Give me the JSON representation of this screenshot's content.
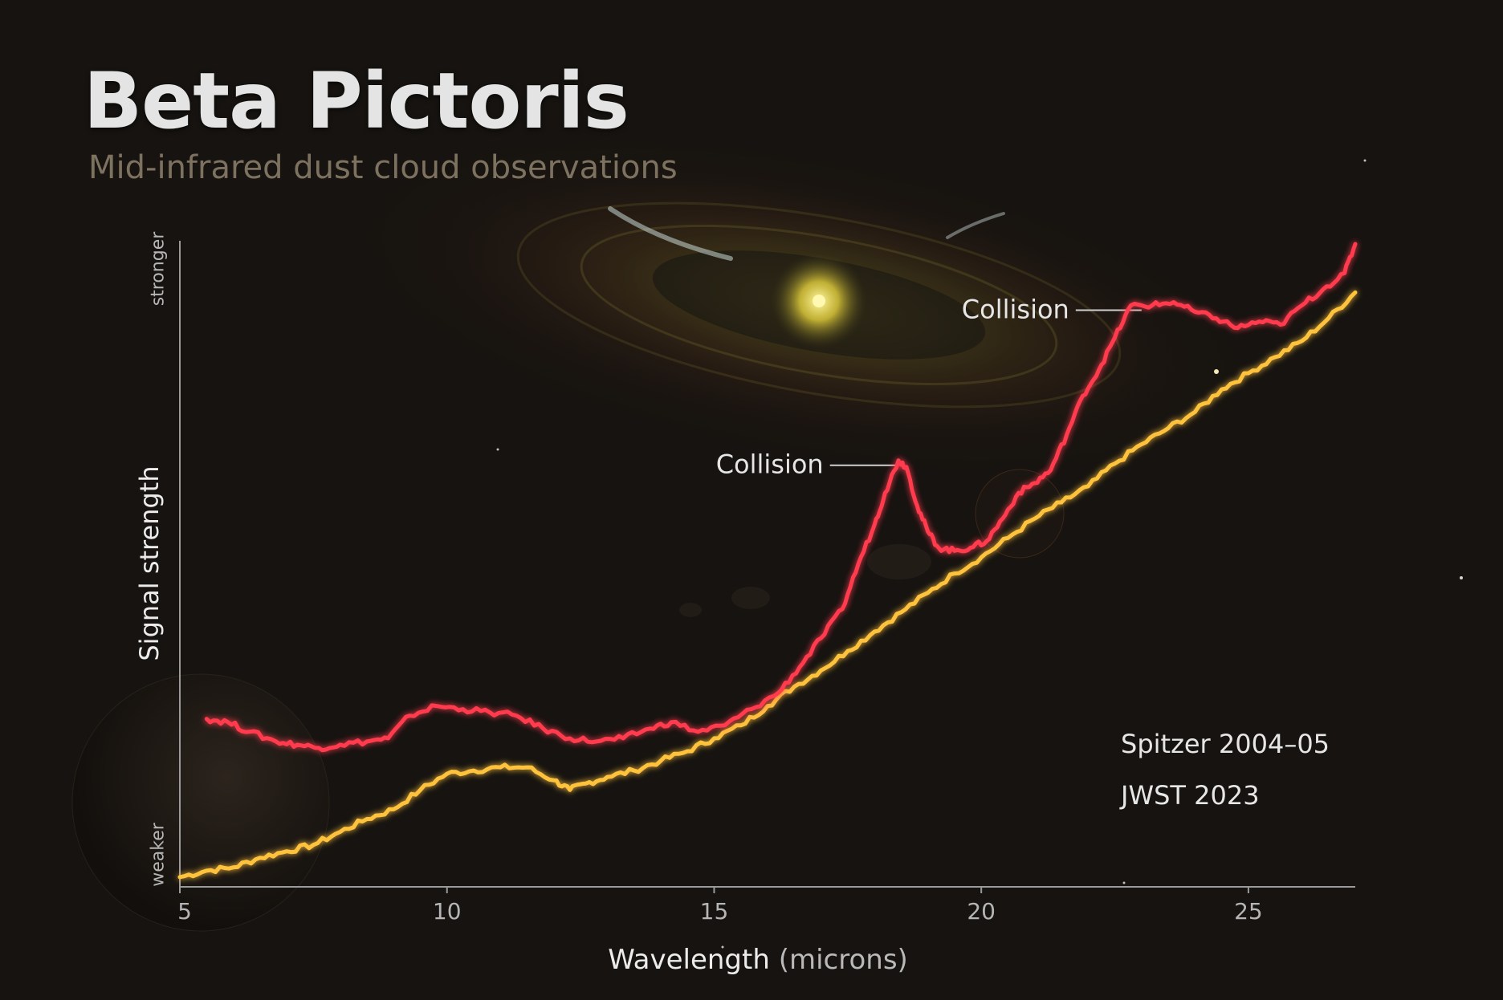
{
  "title": "Beta Pictoris",
  "subtitle": "Mid-infrared dust cloud observations",
  "colors": {
    "spitzer": "#ff3b4e",
    "jwst": "#ffc23d",
    "axis": "#9a9a9a",
    "text": "#e6e6e6"
  },
  "chart_data": {
    "type": "line",
    "xlabel": "Wavelength",
    "xlabel_unit": "(microns)",
    "ylabel": "Signal strength",
    "y_tick_labels": {
      "bottom": "weaker",
      "top": "stronger"
    },
    "xlim": [
      5,
      27.0
    ],
    "ylim": [
      0,
      100
    ],
    "x_ticks": [
      5,
      10,
      15,
      20,
      25
    ],
    "grid": false,
    "legend_position": "bottom-right",
    "annotations": [
      {
        "text": "Collision",
        "x": 18.4,
        "y": 66
      },
      {
        "text": "Collision",
        "x": 23.0,
        "y": 90
      }
    ],
    "series": [
      {
        "name": "Spitzer 2004–05",
        "color": "#ff3b4e",
        "points": [
          [
            5.5,
            26
          ],
          [
            5.9,
            25.5
          ],
          [
            6.3,
            24
          ],
          [
            6.8,
            22.5
          ],
          [
            7.2,
            22
          ],
          [
            7.6,
            21.5
          ],
          [
            8.0,
            22
          ],
          [
            8.5,
            22.5
          ],
          [
            8.9,
            23
          ],
          [
            9.3,
            26.5
          ],
          [
            9.8,
            28
          ],
          [
            10.3,
            27.5
          ],
          [
            10.8,
            27
          ],
          [
            11.3,
            26.5
          ],
          [
            11.8,
            24.5
          ],
          [
            12.3,
            23
          ],
          [
            12.8,
            22.5
          ],
          [
            13.3,
            23
          ],
          [
            13.8,
            24.5
          ],
          [
            14.2,
            25.5
          ],
          [
            14.7,
            24
          ],
          [
            15.2,
            25
          ],
          [
            15.7,
            27.5
          ],
          [
            16.2,
            30
          ],
          [
            16.6,
            34
          ],
          [
            17.0,
            38.5
          ],
          [
            17.4,
            43
          ],
          [
            17.7,
            50
          ],
          [
            18.0,
            56
          ],
          [
            18.2,
            61
          ],
          [
            18.45,
            66
          ],
          [
            18.6,
            65
          ],
          [
            18.8,
            59
          ],
          [
            19.0,
            55
          ],
          [
            19.2,
            52.5
          ],
          [
            19.5,
            52
          ],
          [
            19.8,
            52.5
          ],
          [
            20.1,
            53.5
          ],
          [
            20.4,
            57
          ],
          [
            20.7,
            61
          ],
          [
            21.0,
            62.5
          ],
          [
            21.3,
            64.5
          ],
          [
            21.6,
            70
          ],
          [
            21.9,
            76
          ],
          [
            22.2,
            80
          ],
          [
            22.5,
            85
          ],
          [
            22.8,
            90
          ],
          [
            23.2,
            90
          ],
          [
            23.6,
            90.5
          ],
          [
            24.0,
            89
          ],
          [
            24.4,
            88
          ],
          [
            24.8,
            86.5
          ],
          [
            25.2,
            87.5
          ],
          [
            25.6,
            87
          ],
          [
            26.0,
            90
          ],
          [
            26.4,
            92.5
          ],
          [
            26.8,
            95
          ],
          [
            27.0,
            99.5
          ]
        ]
      },
      {
        "name": "JWST 2023",
        "color": "#ffc23d",
        "points": [
          [
            5.0,
            1.5
          ],
          [
            5.5,
            2.5
          ],
          [
            6.0,
            3
          ],
          [
            6.5,
            4.5
          ],
          [
            7.0,
            5.5
          ],
          [
            7.5,
            6.5
          ],
          [
            8.0,
            8.5
          ],
          [
            8.5,
            10.5
          ],
          [
            9.0,
            12
          ],
          [
            9.5,
            15
          ],
          [
            10.0,
            17.5
          ],
          [
            10.5,
            18
          ],
          [
            11.0,
            18.5
          ],
          [
            11.5,
            18.5
          ],
          [
            12.0,
            16.5
          ],
          [
            12.3,
            15
          ],
          [
            12.6,
            16
          ],
          [
            13.0,
            17
          ],
          [
            13.5,
            18
          ],
          [
            14.0,
            19.5
          ],
          [
            14.5,
            21
          ],
          [
            15.0,
            23
          ],
          [
            15.5,
            25
          ],
          [
            16.0,
            28
          ],
          [
            16.5,
            31
          ],
          [
            17.0,
            33.5
          ],
          [
            17.5,
            36.5
          ],
          [
            18.0,
            39.5
          ],
          [
            18.5,
            42.5
          ],
          [
            19.0,
            45.5
          ],
          [
            19.5,
            48.5
          ],
          [
            20.0,
            51
          ],
          [
            20.5,
            54
          ],
          [
            21.0,
            57
          ],
          [
            21.5,
            59.5
          ],
          [
            22.0,
            62
          ],
          [
            22.5,
            65.5
          ],
          [
            23.0,
            68.5
          ],
          [
            23.5,
            71
          ],
          [
            24.0,
            73.5
          ],
          [
            24.5,
            77
          ],
          [
            25.0,
            79.5
          ],
          [
            25.5,
            82
          ],
          [
            26.0,
            84.5
          ],
          [
            26.5,
            88
          ],
          [
            27.0,
            92
          ]
        ]
      }
    ]
  }
}
